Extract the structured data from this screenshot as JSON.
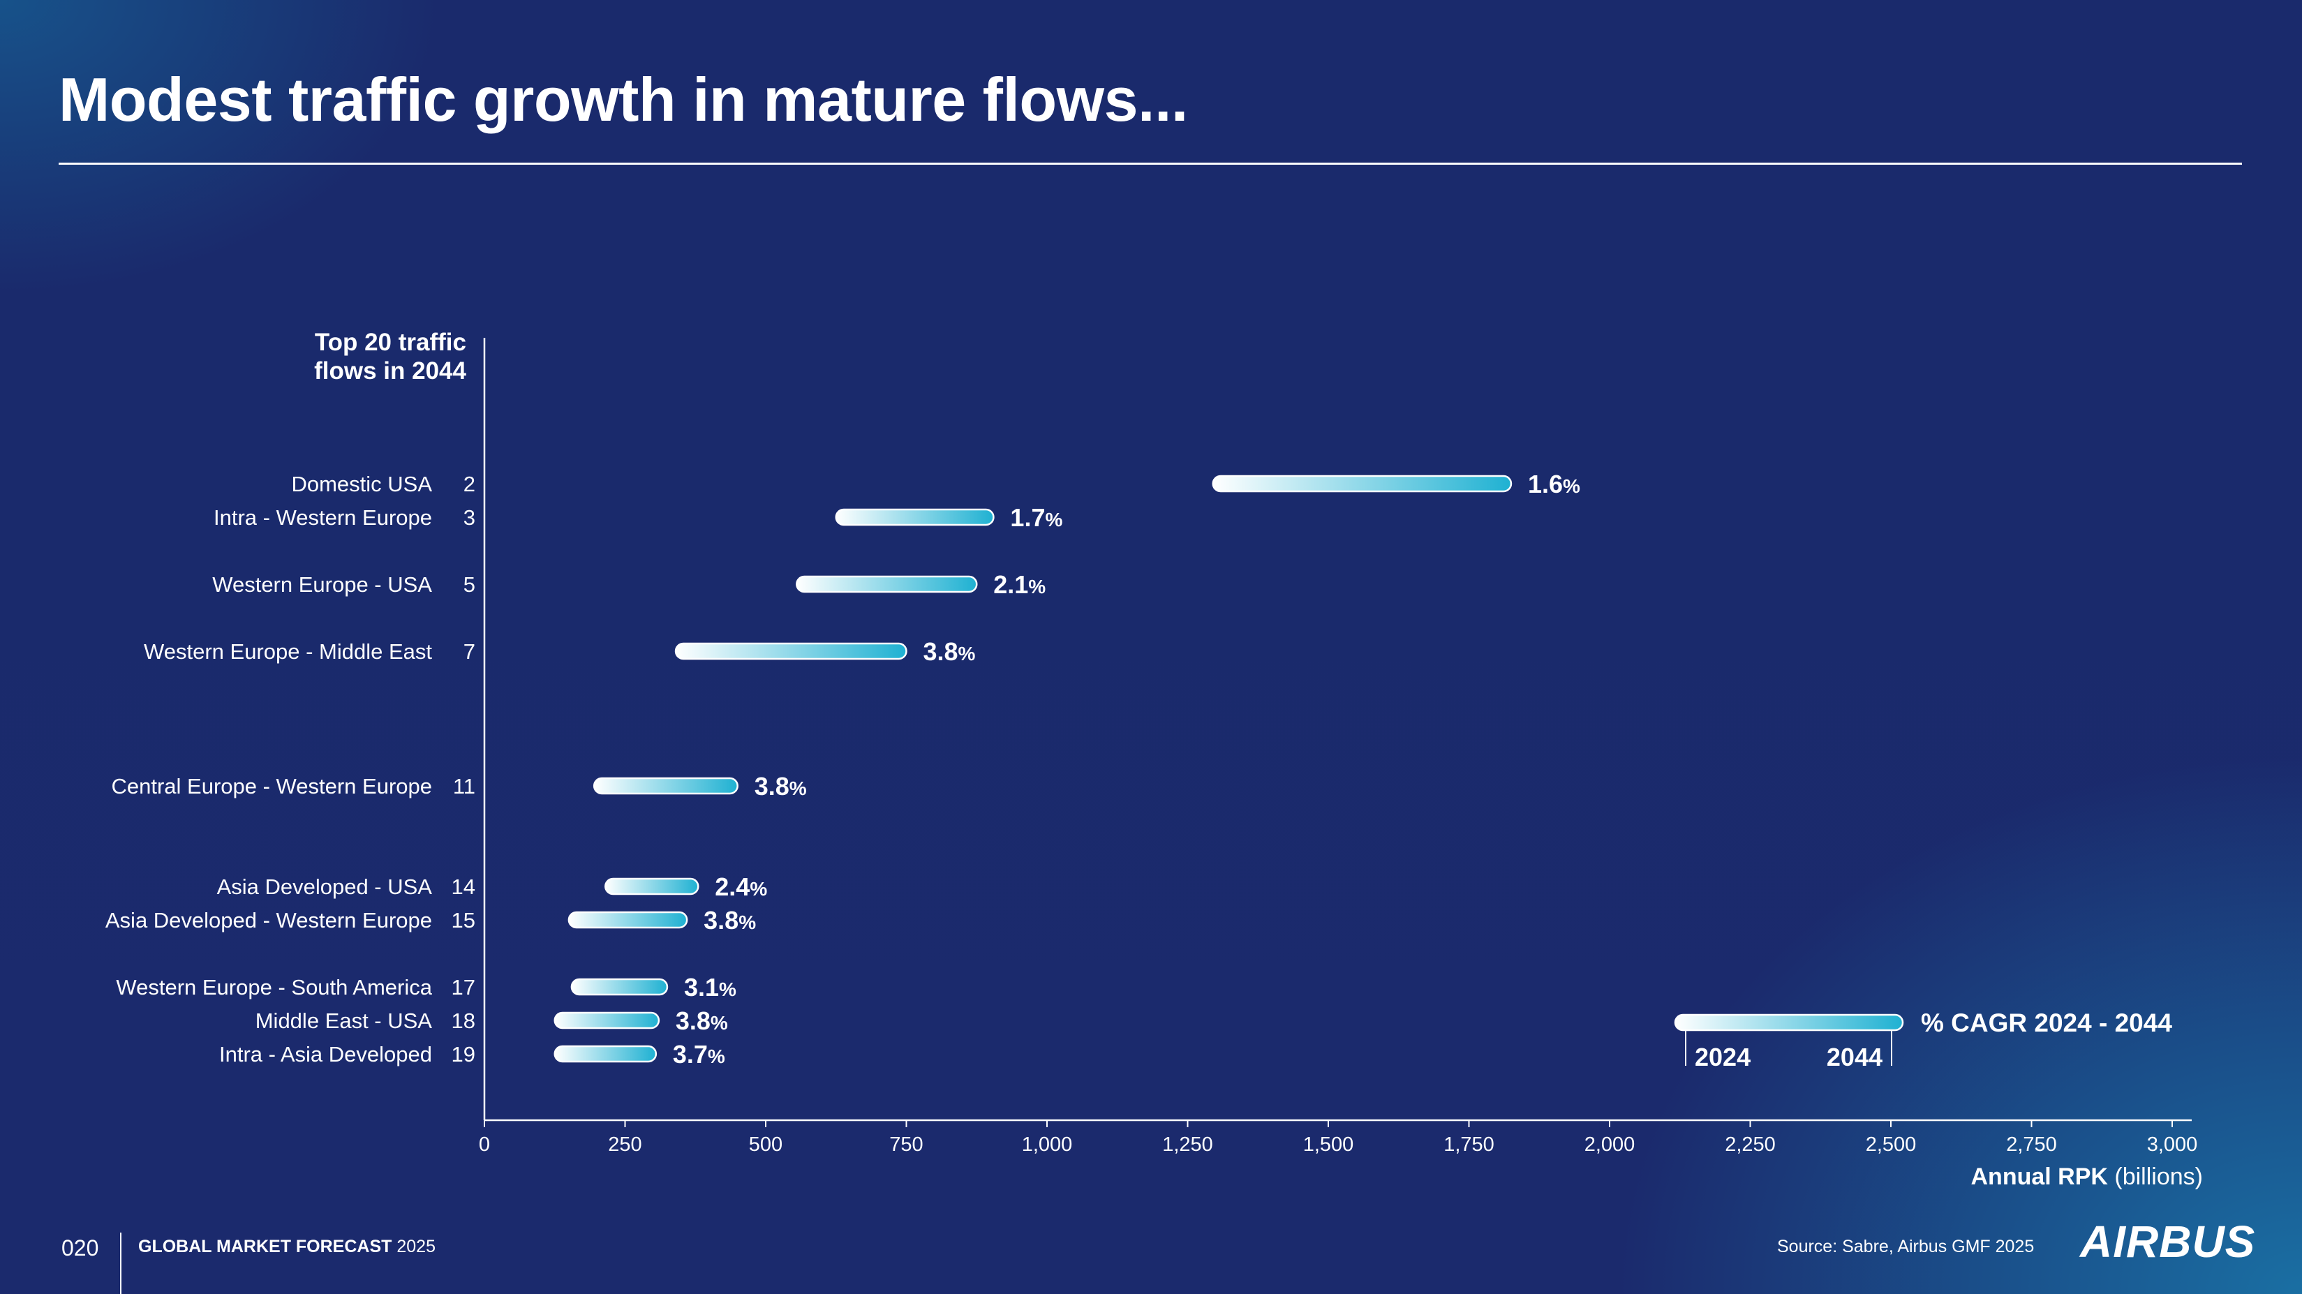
{
  "title": "Modest traffic growth in mature flows...",
  "footer": {
    "page_number": "020",
    "publication_bold": "GLOBAL MARKET FORECAST",
    "publication_year": "2025",
    "source": "Source: Sabre, Airbus GMF 2025",
    "logo": "AIRBUS"
  },
  "colors": {
    "background": "#1b2a6d",
    "bar_start": "#ffffff",
    "bar_end": "#1fb1d2",
    "text": "#ffffff"
  },
  "chart_data": {
    "type": "range-bar",
    "header_line1": "Top 20 traffic",
    "header_line2": "flows in 2044",
    "xlabel_bold": "Annual RPK",
    "xlabel_unit": "(billions)",
    "xlim": [
      0,
      3000
    ],
    "xticks": [
      0,
      250,
      500,
      750,
      1000,
      1250,
      1500,
      1750,
      2000,
      2250,
      2500,
      2750,
      3000
    ],
    "xtick_labels": [
      "0",
      "250",
      "500",
      "750",
      "1,000",
      "1,250",
      "1,500",
      "1,750",
      "2,000",
      "2,250",
      "2,500",
      "2,750",
      "3,000"
    ],
    "series": [
      {
        "name": "2024",
        "role": "bar start"
      },
      {
        "name": "2044",
        "role": "bar end"
      }
    ],
    "flows": [
      {
        "name": "Domestic USA",
        "rank": 2,
        "rpk_2024": 1295,
        "rpk_2044": 1825,
        "cagr": "1.6"
      },
      {
        "name": "Intra - Western Europe",
        "rank": 3,
        "rpk_2024": 625,
        "rpk_2044": 905,
        "cagr": "1.7"
      },
      {
        "name": "Western Europe - USA",
        "rank": 5,
        "rpk_2024": 555,
        "rpk_2044": 875,
        "cagr": "2.1"
      },
      {
        "name": "Western Europe - Middle East",
        "rank": 7,
        "rpk_2024": 340,
        "rpk_2044": 750,
        "cagr": "3.8"
      },
      {
        "name": "Central Europe - Western Europe",
        "rank": 11,
        "rpk_2024": 195,
        "rpk_2044": 450,
        "cagr": "3.8"
      },
      {
        "name": "Asia Developed - USA",
        "rank": 14,
        "rpk_2024": 215,
        "rpk_2044": 380,
        "cagr": "2.4"
      },
      {
        "name": "Asia Developed - Western Europe",
        "rank": 15,
        "rpk_2024": 150,
        "rpk_2044": 360,
        "cagr": "3.8"
      },
      {
        "name": "Western Europe - South America",
        "rank": 17,
        "rpk_2024": 155,
        "rpk_2044": 325,
        "cagr": "3.1"
      },
      {
        "name": "Middle East - USA",
        "rank": 18,
        "rpk_2024": 125,
        "rpk_2044": 310,
        "cagr": "3.8"
      },
      {
        "name": "Intra - Asia Developed",
        "rank": 19,
        "rpk_2024": 125,
        "rpk_2044": 305,
        "cagr": "3.7"
      }
    ],
    "percent_sign": "%",
    "legend": {
      "label": "% CAGR 2024 - 2044",
      "start_label": "2024",
      "end_label": "2044",
      "position": "bottom-right"
    }
  }
}
